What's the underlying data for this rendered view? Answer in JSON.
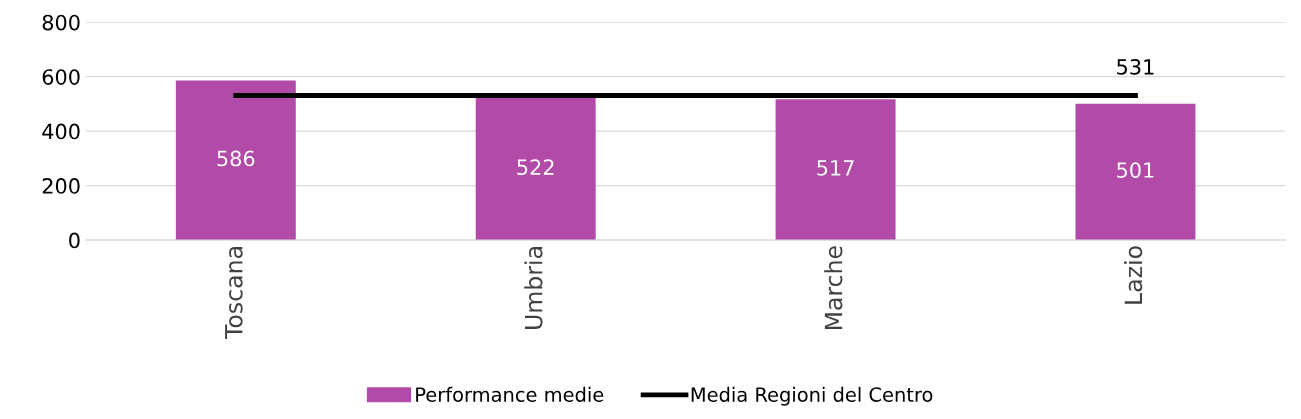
{
  "chart_data": {
    "type": "bar",
    "categories": [
      "Toscana",
      "Umbria",
      "Marche",
      "Lazio"
    ],
    "series": [
      {
        "name": "Performance medie",
        "color": "#b24aa8",
        "values": [
          586,
          522,
          517,
          501
        ],
        "value_labels": [
          "586",
          "522",
          "517",
          "501"
        ]
      },
      {
        "name": "Media Regioni del Centro",
        "type": "line",
        "color": "#000000",
        "values": [
          531,
          531,
          531,
          531
        ],
        "value_labels": [
          null,
          null,
          null,
          "531"
        ]
      }
    ],
    "ylim": [
      0,
      800
    ],
    "yticks": [
      0,
      200,
      400,
      600,
      800
    ],
    "grid": "y",
    "legend": "bottom",
    "marker": "none",
    "line_style": "solid"
  }
}
